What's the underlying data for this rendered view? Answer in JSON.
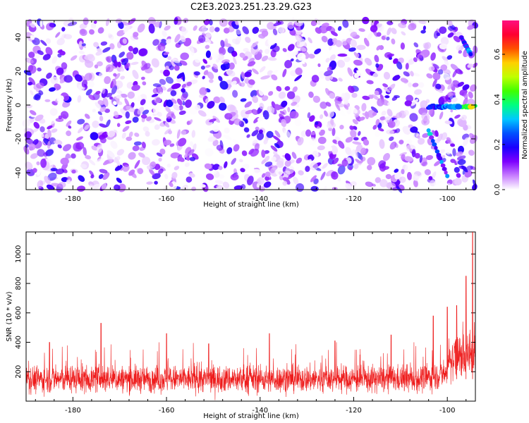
{
  "title": "C2E3.2023.251.23.29.G23",
  "chart_data": [
    {
      "type": "heatmap",
      "xlabel": "Height of straight line (km)",
      "ylabel": "Frequency (Hz)",
      "xlim": [
        -190,
        -94
      ],
      "ylim": [
        -50,
        50
      ],
      "xticks": [
        -180,
        -160,
        -140,
        -120,
        -100
      ],
      "yticks": [
        -40,
        -20,
        0,
        20,
        40
      ],
      "colorbar": {
        "label": "Normalized spectral amplitude",
        "range": [
          0,
          0.75
        ],
        "ticks": [
          0.0,
          0.2,
          0.4,
          0.6
        ],
        "colormap": [
          "#ffffff",
          "#c77dff",
          "#7d00ff",
          "#1a00ff",
          "#0050ff",
          "#00c8ff",
          "#00ff80",
          "#40ff00",
          "#c0ff00",
          "#ffd000",
          "#ff5000",
          "#ff0030",
          "#ff1080"
        ]
      },
      "features": [
        {
          "label": "main scintillation line near 0 Hz",
          "x_range": [
            -104,
            -94
          ],
          "frequency": -1,
          "peak_amplitude": 0.55
        },
        {
          "label": "upper branch",
          "x": [
            -97,
            -95
          ],
          "frequency": [
            40,
            30
          ],
          "peak_amplitude": 0.25
        },
        {
          "label": "lower branch",
          "x": [
            -104,
            -100
          ],
          "frequency": [
            -15,
            -42
          ],
          "peak_amplitude": 0.25
        }
      ]
    },
    {
      "type": "line",
      "xlabel": "Height of straight line (km)",
      "ylabel": "SNR (10 * v/v)",
      "xlim": [
        -190,
        -94
      ],
      "ylim": [
        0,
        1150
      ],
      "xticks": [
        -180,
        -160,
        -140,
        -120,
        -100
      ],
      "yticks": [
        200,
        400,
        600,
        800,
        1000
      ],
      "series": [
        {
          "color": "#ee1c1c",
          "baseline_mean": 150,
          "noise_max": 400,
          "spikes": [
            {
              "x": -185,
              "y": 400
            },
            {
              "x": -174,
              "y": 530
            },
            {
              "x": -160,
              "y": 460
            },
            {
              "x": -151,
              "y": 390
            },
            {
              "x": -138,
              "y": 460
            },
            {
              "x": -124,
              "y": 410
            },
            {
              "x": -112,
              "y": 450
            },
            {
              "x": -103,
              "y": 580
            },
            {
              "x": -100,
              "y": 640
            },
            {
              "x": -98,
              "y": 650
            },
            {
              "x": -96,
              "y": 850
            },
            {
              "x": -94.6,
              "y": 1150
            }
          ]
        }
      ]
    }
  ]
}
